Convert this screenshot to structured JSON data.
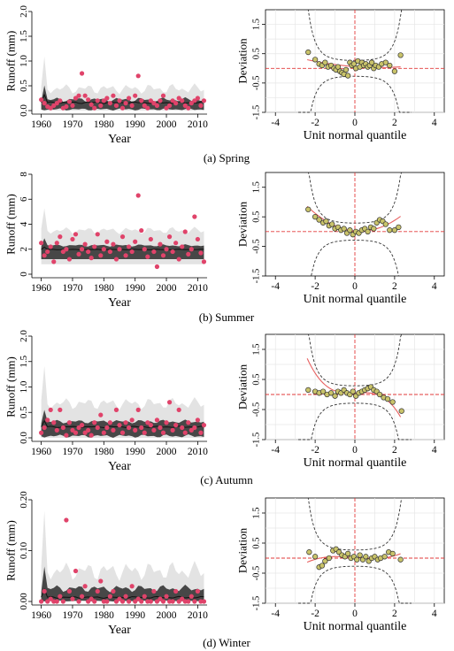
{
  "figure": {
    "panels": [
      {
        "caption": "(a)  Spring"
      },
      {
        "caption": "(b)  Summer"
      },
      {
        "caption": "(c)  Autumn"
      },
      {
        "caption": "(d)  Winter"
      }
    ]
  },
  "style": {
    "band_outer": "#e3e3e3",
    "band_inner": "#474747",
    "median_line": "#111111",
    "observed_points": "#e0436a",
    "qq_points": "#c9c36a",
    "trend_line": "#e86060",
    "reference_line": "#e23a3a",
    "confidence_curve": "#333333"
  },
  "chart_data": [
    {
      "type": "area",
      "panel": "Spring",
      "xlabel": "Year",
      "ylabel": "Runoff (mm)",
      "xlim": [
        1957,
        2013
      ],
      "ylim": [
        0,
        2.0
      ],
      "xticks": [
        1960,
        1970,
        1980,
        1990,
        2000,
        2010
      ],
      "ytick_labels": [
        "0.0",
        "0.5",
        "1.0",
        "1.5",
        "2.0"
      ],
      "x_start": 1960,
      "bands": {
        "outer_base": 0.33,
        "outer_amp": 0.22,
        "inner_base": 0.17,
        "inner_amp": 0.1,
        "median_base": 0.14,
        "median_amp": 0.04
      },
      "series": [
        {
          "values": [
            0.22,
            0.15,
            0.08,
            0.05,
            0.1,
            0.15,
            0.2,
            0.05,
            0.08,
            0.18,
            0.1,
            0.25,
            0.3,
            0.75,
            0.3,
            0.22,
            0.12,
            0.05,
            0.2,
            0.1,
            0.2,
            0.25,
            0.15,
            0.3,
            0.1,
            0.2,
            0.05,
            0.15,
            0.25,
            0.1,
            0.3,
            0.7,
            0.2,
            0.1,
            0.05,
            0.2,
            0.15,
            0.1,
            0.2,
            0.3,
            0.05,
            0.1,
            0.2,
            0.15,
            0.25,
            0.2,
            0.1,
            0.05,
            0.15,
            0.2,
            0.25,
            0.1,
            0.2
          ]
        }
      ]
    },
    {
      "type": "scatter",
      "panel": "Spring",
      "xlabel": "Unit  normal  quantile",
      "ylabel": "Deviation",
      "xlim": [
        -4.5,
        4.5
      ],
      "ylim": [
        -1.5,
        2.0
      ],
      "xticks": [
        -4,
        -2,
        0,
        2,
        4
      ],
      "yticks": [
        1.5,
        0.5,
        -0.5,
        -1.5
      ],
      "ytick_labels": [
        "1.5",
        "0.5",
        "-0.5",
        "-1.5"
      ],
      "grid": true,
      "confidence_width": 0.7,
      "trend_coeffs": [
        0.06,
        -0.05,
        0.02,
        0.0
      ],
      "points": [
        [
          -2.35,
          0.55
        ],
        [
          -2.0,
          0.3
        ],
        [
          -1.8,
          0.15
        ],
        [
          -1.65,
          0.1
        ],
        [
          -1.5,
          0.2
        ],
        [
          -1.35,
          0.05
        ],
        [
          -1.2,
          0.1
        ],
        [
          -1.05,
          0.0
        ],
        [
          -0.95,
          -0.05
        ],
        [
          -0.85,
          0.05
        ],
        [
          -0.75,
          -0.1
        ],
        [
          -0.65,
          -0.15
        ],
        [
          -0.55,
          -0.2
        ],
        [
          -0.45,
          -0.05
        ],
        [
          -0.35,
          -0.25
        ],
        [
          -0.25,
          0.2
        ],
        [
          -0.15,
          0.1
        ],
        [
          -0.05,
          0.15
        ],
        [
          0.05,
          0.0
        ],
        [
          0.15,
          0.25
        ],
        [
          0.25,
          0.05
        ],
        [
          0.35,
          0.2
        ],
        [
          0.45,
          0.1
        ],
        [
          0.55,
          0.15
        ],
        [
          0.65,
          0.05
        ],
        [
          0.75,
          0.1
        ],
        [
          0.85,
          0.2
        ],
        [
          0.95,
          0.0
        ],
        [
          1.05,
          0.1
        ],
        [
          1.2,
          0.05
        ],
        [
          1.35,
          0.15
        ],
        [
          1.55,
          0.2
        ],
        [
          1.75,
          0.1
        ],
        [
          2.0,
          -0.1
        ],
        [
          2.3,
          0.45
        ]
      ]
    },
    {
      "type": "area",
      "panel": "Summer",
      "xlabel": "Year",
      "ylabel": "Runoff (mm)",
      "xlim": [
        1957,
        2013
      ],
      "ylim": [
        0,
        8
      ],
      "xticks": [
        1960,
        1970,
        1980,
        1990,
        2000,
        2010
      ],
      "ytick_labels": [
        "0",
        "2",
        "4",
        "6",
        "8"
      ],
      "x_start": 1960,
      "bands": {
        "outer_base": 3.2,
        "outer_amp": 0.6,
        "inner_base": 2.2,
        "inner_amp": 0.2,
        "median_base": 1.95,
        "median_amp": 0.05,
        "lower_outer": 0.8,
        "lower_inner": 1.2
      },
      "series": [
        {
          "values": [
            2.5,
            1.5,
            1.8,
            2.2,
            1.0,
            2.5,
            3.0,
            1.8,
            2.0,
            1.2,
            2.8,
            3.2,
            1.6,
            2.0,
            2.4,
            1.8,
            1.3,
            2.2,
            3.2,
            1.5,
            2.0,
            2.6,
            1.8,
            2.4,
            1.2,
            2.0,
            3.0,
            1.5,
            2.2,
            1.8,
            2.6,
            6.3,
            3.5,
            2.0,
            1.4,
            2.8,
            1.8,
            0.6,
            2.4,
            1.5,
            2.0,
            3.0,
            1.8,
            2.5,
            1.2,
            2.2,
            3.4,
            1.6,
            2.0,
            4.6,
            2.8,
            1.7,
            1.0
          ]
        }
      ]
    },
    {
      "type": "scatter",
      "panel": "Summer",
      "xlabel": "Unit  normal  quantile",
      "ylabel": "Deviation",
      "xlim": [
        -4.5,
        4.5
      ],
      "ylim": [
        -1.5,
        2.0
      ],
      "xticks": [
        -4,
        -2,
        0,
        2,
        4
      ],
      "yticks": [
        1.5,
        0.5,
        -0.5,
        -1.5
      ],
      "ytick_labels": [
        "1.5",
        "0.5",
        "-0.5",
        "-1.5"
      ],
      "grid": false,
      "confidence_width": 0.75,
      "trend_coeffs": [
        0.02,
        -0.06,
        0.12,
        0.0
      ],
      "points": [
        [
          -2.35,
          0.75
        ],
        [
          -2.0,
          0.5
        ],
        [
          -1.8,
          0.4
        ],
        [
          -1.6,
          0.3
        ],
        [
          -1.45,
          0.35
        ],
        [
          -1.3,
          0.2
        ],
        [
          -1.15,
          0.25
        ],
        [
          -1.0,
          0.1
        ],
        [
          -0.85,
          0.15
        ],
        [
          -0.7,
          0.05
        ],
        [
          -0.55,
          0.1
        ],
        [
          -0.4,
          -0.05
        ],
        [
          -0.25,
          0.05
        ],
        [
          -0.1,
          -0.1
        ],
        [
          0.05,
          0.0
        ],
        [
          0.2,
          -0.05
        ],
        [
          0.35,
          0.05
        ],
        [
          0.5,
          0.1
        ],
        [
          0.65,
          0.0
        ],
        [
          0.8,
          0.15
        ],
        [
          0.95,
          0.1
        ],
        [
          1.1,
          0.3
        ],
        [
          1.25,
          0.4
        ],
        [
          1.4,
          0.35
        ],
        [
          1.55,
          0.25
        ],
        [
          1.75,
          0.05
        ],
        [
          2.0,
          0.05
        ],
        [
          2.2,
          0.15
        ]
      ]
    },
    {
      "type": "area",
      "panel": "Autumn",
      "xlabel": "Year",
      "ylabel": "Runoff (mm)",
      "xlim": [
        1957,
        2013
      ],
      "ylim": [
        0,
        2.0
      ],
      "xticks": [
        1960,
        1970,
        1980,
        1990,
        2000,
        2010
      ],
      "ytick_labels": [
        "0.0",
        "0.5",
        "1.0",
        "1.5",
        "2.0"
      ],
      "x_start": 1960,
      "bands": {
        "outer_base": 0.55,
        "outer_amp": 0.25,
        "inner_base": 0.28,
        "inner_amp": 0.08,
        "median_base": 0.2,
        "median_amp": 0.03
      },
      "series": [
        {
          "values": [
            0.1,
            0.2,
            0.35,
            0.55,
            0.3,
            0.15,
            0.55,
            0.2,
            0.05,
            0.3,
            0.15,
            0.1,
            0.2,
            0.25,
            0.1,
            0.15,
            0.05,
            0.3,
            0.2,
            0.45,
            0.1,
            0.2,
            0.3,
            0.15,
            0.55,
            0.25,
            0.1,
            0.3,
            0.2,
            0.35,
            0.15,
            0.55,
            0.2,
            0.1,
            0.3,
            0.25,
            0.15,
            0.35,
            0.2,
            0.1,
            0.3,
            0.7,
            0.15,
            0.25,
            0.55,
            0.2,
            0.1,
            0.3,
            0.15,
            0.2,
            0.35,
            0.1,
            0.25
          ]
        }
      ]
    },
    {
      "type": "scatter",
      "panel": "Autumn",
      "xlabel": "Unit  normal  quantile",
      "ylabel": "Deviation",
      "xlim": [
        -4.5,
        4.5
      ],
      "ylim": [
        -1.5,
        2.0
      ],
      "xticks": [
        -4,
        -2,
        0,
        2,
        4
      ],
      "yticks": [
        1.5,
        0.5,
        -0.5,
        -1.5
      ],
      "ytick_labels": [
        "1.5",
        "0.5",
        "-0.5",
        "-1.5"
      ],
      "grid": true,
      "confidence_width": 0.75,
      "trend_coeffs": [
        0.05,
        0.03,
        0.02,
        -0.08
      ],
      "points": [
        [
          -2.35,
          0.15
        ],
        [
          -2.0,
          0.1
        ],
        [
          -1.8,
          0.05
        ],
        [
          -1.6,
          0.1
        ],
        [
          -1.4,
          0.0
        ],
        [
          -1.2,
          0.05
        ],
        [
          -1.0,
          -0.05
        ],
        [
          -0.85,
          0.1
        ],
        [
          -0.7,
          0.05
        ],
        [
          -0.55,
          0.15
        ],
        [
          -0.4,
          0.05
        ],
        [
          -0.25,
          0.0
        ],
        [
          -0.1,
          0.1
        ],
        [
          0.05,
          -0.05
        ],
        [
          0.2,
          0.05
        ],
        [
          0.35,
          0.1
        ],
        [
          0.5,
          0.15
        ],
        [
          0.65,
          0.2
        ],
        [
          0.8,
          0.25
        ],
        [
          0.95,
          0.15
        ],
        [
          1.1,
          0.1
        ],
        [
          1.25,
          0.0
        ],
        [
          1.45,
          -0.1
        ],
        [
          1.65,
          -0.15
        ],
        [
          1.9,
          -0.25
        ],
        [
          2.35,
          -0.55
        ]
      ]
    },
    {
      "type": "area",
      "panel": "Winter",
      "xlabel": "Year",
      "ylabel": "Runoff (mm)",
      "xlim": [
        1957,
        2013
      ],
      "ylim": [
        0,
        0.2
      ],
      "xticks": [
        1960,
        1970,
        1980,
        1990,
        2000,
        2010
      ],
      "ytick_labels": [
        "0.00",
        "0.10",
        "0.20"
      ],
      "x_start": 1960,
      "bands": {
        "outer_base": 0.04,
        "outer_amp": 0.04,
        "inner_base": 0.018,
        "inner_amp": 0.015,
        "median_base": 0.006,
        "median_amp": 0.004
      },
      "series": [
        {
          "values": [
            0.0,
            0.02,
            0.0,
            0.005,
            0.0,
            0.0,
            0.01,
            0.0,
            0.16,
            0.02,
            0.005,
            0.06,
            0.0,
            0.01,
            0.03,
            0.0,
            0.005,
            0.0,
            0.02,
            0.04,
            0.0,
            0.0,
            0.01,
            0.02,
            0.0,
            0.005,
            0.0,
            0.01,
            0.0,
            0.03,
            0.0,
            0.005,
            0.0,
            0.01,
            0.0,
            0.0,
            0.02,
            0.0,
            0.005,
            0.0,
            0.01,
            0.0,
            0.0,
            0.02,
            0.0,
            0.005,
            0.0,
            0.0,
            0.01,
            0.0,
            0.02,
            0.0,
            0.0
          ]
        }
      ]
    },
    {
      "type": "scatter",
      "panel": "Winter",
      "xlabel": "Unit  normal  quantile",
      "ylabel": "Deviation",
      "xlim": [
        -4.5,
        4.5
      ],
      "ylim": [
        -1.5,
        2.0
      ],
      "xticks": [
        -4,
        -2,
        0,
        2,
        4
      ],
      "yticks": [
        1.5,
        0.5,
        -0.5,
        -1.5
      ],
      "ytick_labels": [
        "1.5",
        "0.5",
        "-0.5",
        "-1.5"
      ],
      "grid": true,
      "confidence_width": 0.7,
      "trend_coeffs": [
        0.02,
        -0.05,
        0.0,
        0.02
      ],
      "points": [
        [
          -2.3,
          0.2
        ],
        [
          -2.0,
          0.05
        ],
        [
          -1.8,
          -0.3
        ],
        [
          -1.65,
          -0.25
        ],
        [
          -1.5,
          -0.1
        ],
        [
          -1.3,
          0.0
        ],
        [
          -1.1,
          0.25
        ],
        [
          -0.95,
          0.3
        ],
        [
          -0.8,
          0.2
        ],
        [
          -0.65,
          0.1
        ],
        [
          -0.5,
          0.05
        ],
        [
          -0.35,
          0.15
        ],
        [
          -0.2,
          0.0
        ],
        [
          -0.05,
          0.05
        ],
        [
          0.1,
          -0.05
        ],
        [
          0.25,
          0.1
        ],
        [
          0.4,
          -0.05
        ],
        [
          0.55,
          0.05
        ],
        [
          0.7,
          -0.1
        ],
        [
          0.85,
          0.0
        ],
        [
          1.0,
          0.05
        ],
        [
          1.15,
          -0.05
        ],
        [
          1.3,
          0.0
        ],
        [
          1.5,
          0.05
        ],
        [
          1.7,
          0.2
        ],
        [
          1.9,
          0.15
        ],
        [
          2.3,
          -0.05
        ]
      ]
    }
  ]
}
